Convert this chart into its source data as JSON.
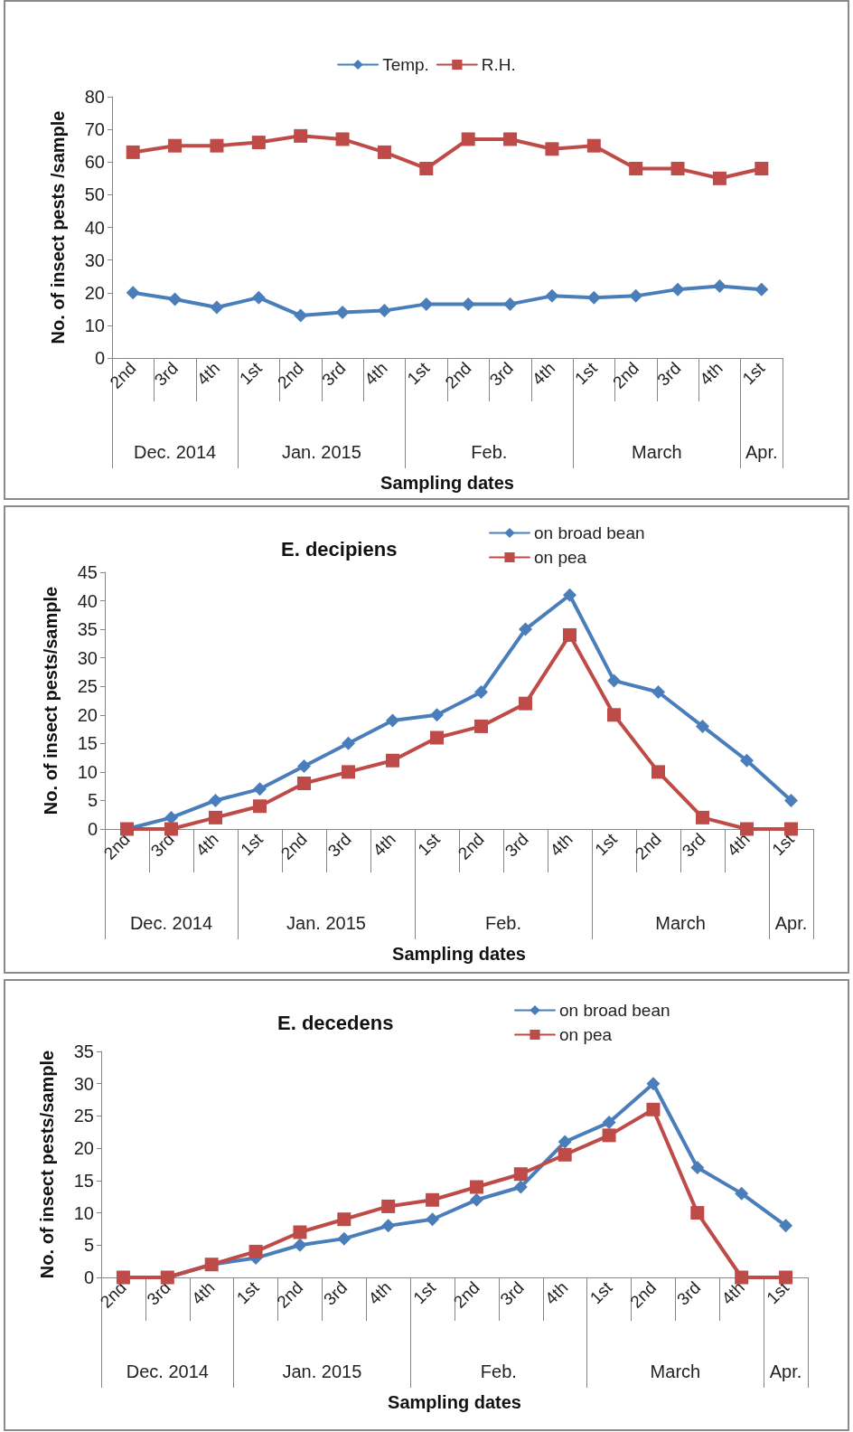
{
  "chart_data": [
    {
      "type": "line",
      "ylabel": "No. of insect pests /sample",
      "xlabel": "Sampling dates",
      "categories": [
        "2nd",
        "3rd",
        "4th",
        "1st",
        "2nd",
        "3rd",
        "4th",
        "1st",
        "2nd",
        "3rd",
        "4th",
        "1st",
        "2nd",
        "3rd",
        "4th",
        "1st"
      ],
      "annotations": [
        "Dec. 2014",
        "Jan. 2015",
        "Feb.",
        "March",
        "Apr."
      ],
      "ylim": [
        0,
        80
      ],
      "yticks": [
        0,
        10,
        20,
        30,
        40,
        50,
        60,
        70,
        80
      ],
      "legend": "top",
      "line_style": "solid",
      "series": [
        {
          "name": "Temp.",
          "color": "#4a7ebb",
          "marker": "diamond",
          "values": [
            20,
            18,
            15.5,
            18.5,
            13,
            14,
            14.5,
            16.5,
            16.5,
            16.5,
            19,
            18.5,
            19,
            21,
            22,
            21
          ]
        },
        {
          "name": "R.H.",
          "color": "#be4b48",
          "marker": "square",
          "values": [
            63,
            65,
            65,
            66,
            68,
            67,
            63,
            58,
            67,
            67,
            64,
            65,
            58,
            58,
            55,
            58
          ]
        }
      ]
    },
    {
      "type": "line",
      "title": "E. decipiens",
      "ylabel": "No. of insect pests/sample",
      "xlabel": "Sampling dates",
      "categories": [
        "2nd",
        "3rd",
        "4th",
        "1st",
        "2nd",
        "3rd",
        "4th",
        "1st",
        "2nd",
        "3rd",
        "4th",
        "1st",
        "2nd",
        "3rd",
        "4th",
        "1st"
      ],
      "annotations": [
        "Dec. 2014",
        "Jan. 2015",
        "Feb.",
        "March",
        "Apr."
      ],
      "ylim": [
        0,
        45
      ],
      "yticks": [
        0,
        5,
        10,
        15,
        20,
        25,
        30,
        35,
        40,
        45
      ],
      "legend": "top right",
      "line_style": "solid",
      "series": [
        {
          "name": "on broad bean",
          "color": "#4a7ebb",
          "marker": "diamond",
          "values": [
            0,
            2,
            5,
            7,
            11,
            15,
            19,
            20,
            24,
            35,
            41,
            26,
            24,
            18,
            12,
            5
          ]
        },
        {
          "name": "on pea",
          "color": "#be4b48",
          "marker": "square",
          "values": [
            0,
            0,
            2,
            4,
            8,
            10,
            12,
            16,
            18,
            22,
            34,
            20,
            10,
            2,
            0,
            0
          ]
        }
      ]
    },
    {
      "type": "line",
      "title": "E. decedens",
      "ylabel": "No. of insect pests/sample",
      "xlabel": "Sampling dates",
      "categories": [
        "2nd",
        "3rd",
        "4th",
        "1st",
        "2nd",
        "3rd",
        "4th",
        "1st",
        "2nd",
        "3rd",
        "4th",
        "1st",
        "2nd",
        "3rd",
        "4th",
        "1st"
      ],
      "annotations": [
        "Dec. 2014",
        "Jan. 2015",
        "Feb.",
        "March",
        "Apr."
      ],
      "ylim": [
        0,
        35
      ],
      "yticks": [
        0,
        5,
        10,
        15,
        20,
        25,
        30,
        35
      ],
      "legend": "top right",
      "line_style": "solid",
      "series": [
        {
          "name": "on broad bean",
          "color": "#4a7ebb",
          "marker": "diamond",
          "values": [
            0,
            0,
            2,
            3,
            5,
            6,
            8,
            9,
            12,
            14,
            21,
            24,
            30,
            17,
            13,
            8
          ]
        },
        {
          "name": "on pea",
          "color": "#be4b48",
          "marker": "square",
          "values": [
            0,
            0,
            2,
            4,
            7,
            9,
            11,
            12,
            14,
            16,
            19,
            22,
            26,
            10,
            0,
            0
          ]
        }
      ]
    }
  ]
}
